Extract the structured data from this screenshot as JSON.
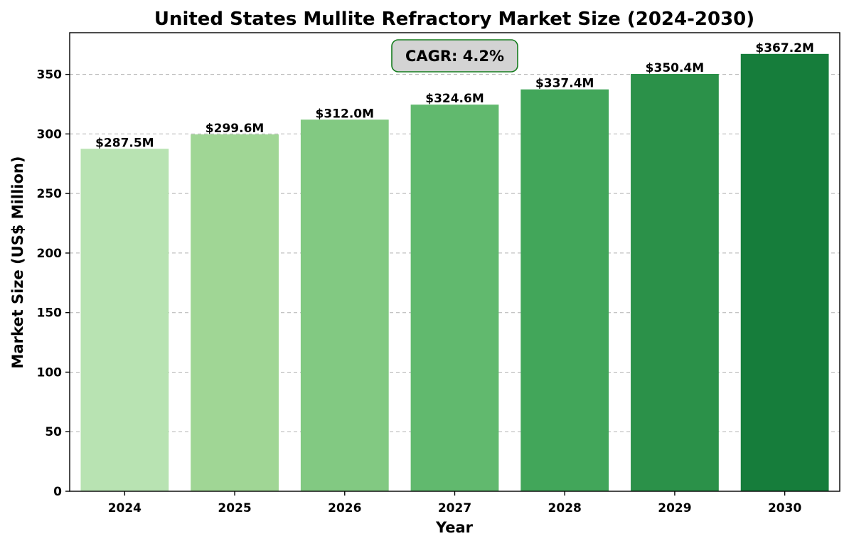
{
  "chart_data": {
    "type": "bar",
    "title": "United States Mullite Refractory Market Size (2024-2030)",
    "xlabel": "Year",
    "ylabel": "Market Size (US$ Million)",
    "categories": [
      "2024",
      "2025",
      "2026",
      "2027",
      "2028",
      "2029",
      "2030"
    ],
    "values": [
      287.5,
      299.6,
      312.0,
      324.6,
      337.4,
      350.4,
      367.2
    ],
    "data_labels": [
      "$287.5M",
      "$299.6M",
      "$312.0M",
      "$324.6M",
      "$337.4M",
      "$350.4M",
      "$367.2M"
    ],
    "bar_colors": [
      "#b8e3b2",
      "#a0d695",
      "#82c982",
      "#61b96e",
      "#42a65a",
      "#2b9149",
      "#167d3b"
    ],
    "ylim": [
      0,
      385
    ],
    "yticks": [
      0,
      50,
      100,
      150,
      200,
      250,
      300,
      350
    ],
    "grid": "y-dashed",
    "annotation": {
      "text": "CAGR: 4.2%",
      "fill": "#d3d3d3",
      "border": "#167d1f"
    }
  }
}
